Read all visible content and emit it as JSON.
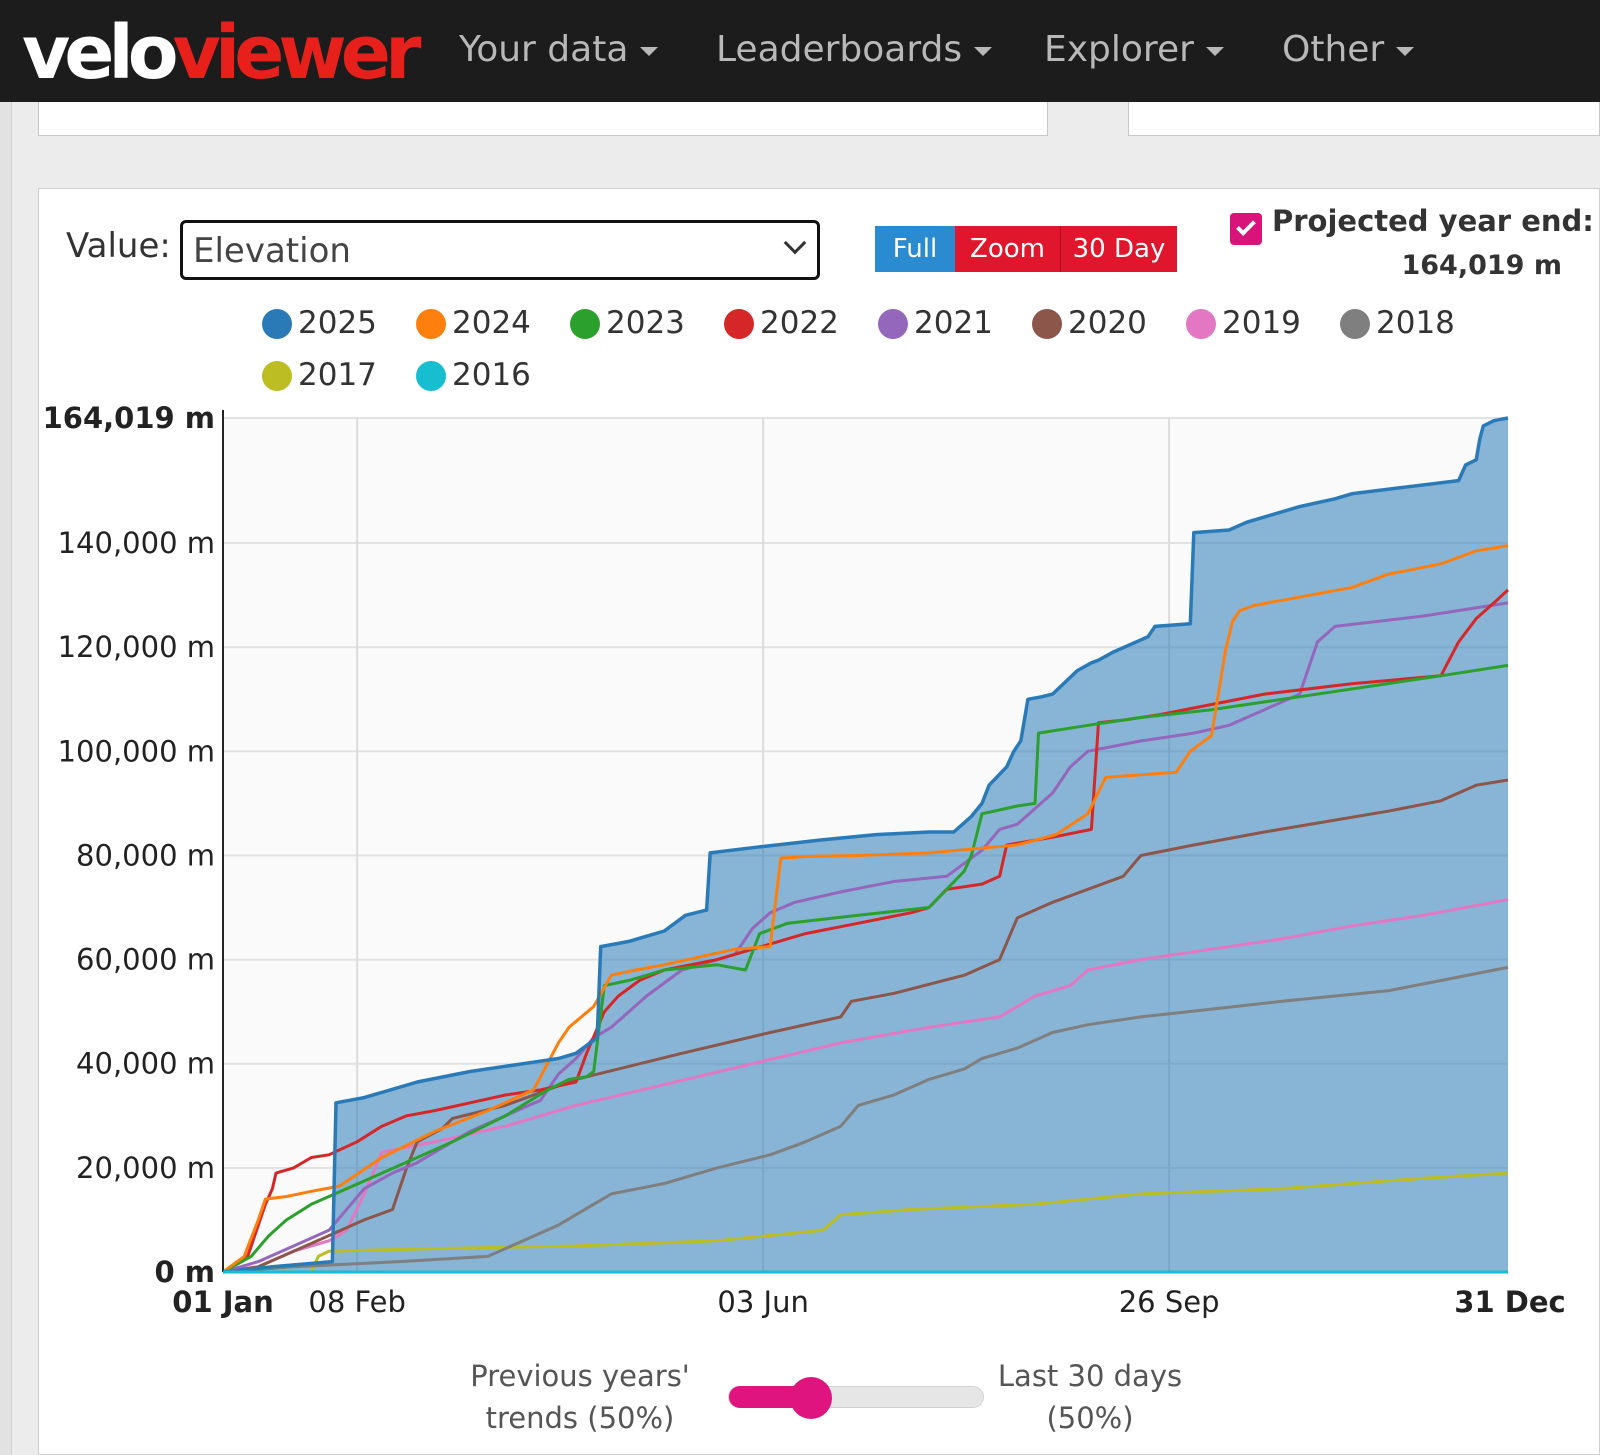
{
  "app": {
    "logo_part1": "velo",
    "logo_part2": "viewer",
    "nav": [
      "Your data",
      "Leaderboards",
      "Explorer",
      "Other"
    ]
  },
  "controls": {
    "value_label": "Value:",
    "value_selected": "Elevation",
    "buttons": [
      "Full",
      "Zoom",
      "30 Day"
    ],
    "projected_label": "Projected year end:",
    "projected_value": "164,019 m",
    "projected_checked": true
  },
  "slider": {
    "left_label_line1": "Previous years'",
    "left_label_line2": "trends (50%)",
    "right_label_line1": "Last 30 days",
    "right_label_line2": "(50%)",
    "value_fraction": 0.28
  },
  "chart_data": {
    "type": "line",
    "title": "",
    "xlabel": "",
    "ylabel": "",
    "x_ticks": [
      "01 Jan",
      "08 Feb",
      "03 Jun",
      "26 Sep",
      "31 Dec"
    ],
    "x_tick_days": [
      0,
      38,
      153,
      268,
      364
    ],
    "y_ticks": [
      "0 m",
      "20,000 m",
      "40,000 m",
      "60,000 m",
      "80,000 m",
      "100,000 m",
      "120,000 m",
      "140,000 m",
      "164,019 m"
    ],
    "y_tick_values": [
      0,
      20000,
      40000,
      60000,
      80000,
      100000,
      120000,
      140000,
      164019
    ],
    "xlim": [
      0,
      364
    ],
    "ylim": [
      0,
      164019
    ],
    "grid": true,
    "legend_position": "top",
    "series": [
      {
        "name": "2025",
        "color": "#2a7ab8",
        "fill": true,
        "x": [
          0,
          14,
          31,
          32,
          40,
          55,
          70,
          85,
          95,
          100,
          106,
          107,
          115,
          125,
          131,
          137,
          138,
          150,
          170,
          185,
          200,
          207,
          212,
          215,
          217,
          222,
          224,
          226,
          228,
          232,
          235,
          242,
          246,
          248,
          252,
          262,
          264,
          274,
          275,
          285,
          290,
          305,
          315,
          320,
          350,
          352,
          355,
          356,
          357,
          360,
          364
        ],
        "y": [
          0,
          1000,
          2000,
          32500,
          33500,
          36500,
          38500,
          40000,
          41000,
          42000,
          45000,
          62500,
          63500,
          65500,
          68500,
          69500,
          80500,
          81500,
          83000,
          84000,
          84500,
          84500,
          87500,
          90000,
          93500,
          97000,
          100000,
          102000,
          110000,
          110500,
          111000,
          115500,
          117000,
          117500,
          119000,
          122000,
          124000,
          124500,
          142000,
          142500,
          144000,
          147000,
          148500,
          149500,
          152000,
          155000,
          156000,
          160000,
          162500,
          163500,
          164019
        ]
      },
      {
        "name": "2024",
        "color": "#ff7f0e",
        "x": [
          0,
          6,
          10,
          12,
          18,
          25,
          33,
          45,
          60,
          75,
          88,
          95,
          98,
          105,
          110,
          117,
          125,
          145,
          155,
          158,
          165,
          180,
          200,
          225,
          236,
          245,
          250,
          270,
          274,
          280,
          284,
          286,
          288,
          292,
          300,
          320,
          330,
          345,
          355,
          364
        ],
        "y": [
          0,
          3000,
          10000,
          14000,
          14500,
          15500,
          16500,
          22000,
          27000,
          31000,
          35000,
          44000,
          47000,
          51000,
          57000,
          58000,
          59000,
          62000,
          62500,
          79500,
          79800,
          80000,
          80500,
          82000,
          84000,
          88000,
          95000,
          96000,
          100000,
          103000,
          119500,
          125000,
          127000,
          128000,
          129000,
          131500,
          134000,
          136000,
          138500,
          139500
        ]
      },
      {
        "name": "2023",
        "color": "#2ca02c",
        "x": [
          0,
          8,
          13,
          18,
          25,
          35,
          45,
          55,
          65,
          80,
          92,
          98,
          103,
          105,
          108,
          115,
          125,
          140,
          148,
          152,
          160,
          180,
          200,
          210,
          212,
          215,
          225,
          230,
          231,
          245,
          260,
          280,
          300,
          330,
          345,
          364
        ],
        "y": [
          0,
          3000,
          7000,
          10000,
          13000,
          16000,
          19000,
          22000,
          25000,
          30000,
          35000,
          37000,
          37500,
          38500,
          55000,
          56000,
          58000,
          59000,
          58000,
          65000,
          67000,
          68500,
          70000,
          77000,
          80000,
          88000,
          89500,
          90000,
          103500,
          105000,
          106500,
          108000,
          110000,
          113000,
          114500,
          116500
        ]
      },
      {
        "name": "2022",
        "color": "#d62728",
        "x": [
          0,
          7,
          10,
          12,
          14,
          15,
          20,
          25,
          30,
          38,
          45,
          52,
          60,
          70,
          80,
          90,
          100,
          103,
          108,
          112,
          118,
          125,
          140,
          150,
          165,
          180,
          195,
          200,
          205,
          215,
          220,
          222,
          235,
          246,
          248,
          255,
          265,
          280,
          295,
          320,
          345,
          350,
          355,
          360,
          364
        ],
        "y": [
          0,
          3000,
          9000,
          13000,
          16000,
          19000,
          20000,
          22000,
          22500,
          25000,
          28000,
          30000,
          31000,
          32500,
          34000,
          35000,
          36500,
          42000,
          50000,
          53000,
          56000,
          58000,
          60000,
          62000,
          65000,
          67000,
          69000,
          70000,
          73500,
          74500,
          76000,
          82000,
          83500,
          85000,
          105500,
          106000,
          107000,
          109000,
          111000,
          113000,
          114500,
          121000,
          125500,
          128500,
          131000
        ]
      },
      {
        "name": "2021",
        "color": "#9467bd",
        "x": [
          0,
          10,
          20,
          30,
          40,
          48,
          55,
          60,
          70,
          80,
          90,
          95,
          100,
          105,
          110,
          120,
          130,
          145,
          150,
          155,
          162,
          175,
          190,
          205,
          215,
          220,
          225,
          235,
          240,
          245,
          260,
          275,
          285,
          295,
          305,
          310,
          315,
          340,
          364
        ],
        "y": [
          0,
          2000,
          5000,
          8000,
          16000,
          19000,
          21000,
          23000,
          27000,
          30000,
          33000,
          38000,
          41000,
          45000,
          47000,
          53000,
          58000,
          61000,
          66000,
          69000,
          71000,
          73000,
          75000,
          76000,
          81000,
          85000,
          86000,
          92000,
          97000,
          100000,
          102000,
          103500,
          105000,
          108000,
          111000,
          121000,
          124000,
          126000,
          128500
        ]
      },
      {
        "name": "2020",
        "color": "#8c564b",
        "x": [
          0,
          10,
          20,
          30,
          40,
          48,
          52,
          55,
          62,
          65,
          80,
          100,
          130,
          155,
          175,
          178,
          190,
          210,
          220,
          225,
          235,
          255,
          260,
          275,
          295,
          330,
          345,
          355,
          364
        ],
        "y": [
          0,
          1000,
          4000,
          7000,
          10000,
          12000,
          20000,
          25000,
          27500,
          29500,
          32000,
          37000,
          42000,
          46000,
          49000,
          52000,
          53500,
          57000,
          60000,
          68000,
          71000,
          76000,
          80000,
          82000,
          84500,
          88500,
          90500,
          93500,
          94500
        ]
      },
      {
        "name": "2019",
        "color": "#e377c2",
        "x": [
          0,
          10,
          20,
          30,
          35,
          40,
          45,
          60,
          80,
          100,
          125,
          150,
          175,
          200,
          220,
          230,
          240,
          245,
          260,
          280,
          300,
          320,
          340,
          364
        ],
        "y": [
          0,
          1000,
          4000,
          6000,
          8000,
          15000,
          23000,
          25000,
          28000,
          32000,
          36000,
          40000,
          44000,
          47000,
          49000,
          53000,
          55000,
          58000,
          60000,
          62000,
          64000,
          66500,
          68500,
          71500
        ]
      },
      {
        "name": "2018",
        "color": "#7f7f7f",
        "x": [
          0,
          20,
          50,
          75,
          95,
          110,
          125,
          140,
          155,
          165,
          175,
          180,
          190,
          200,
          210,
          215,
          225,
          235,
          245,
          260,
          280,
          300,
          330,
          364
        ],
        "y": [
          0,
          1000,
          2000,
          3000,
          9000,
          15000,
          17000,
          20000,
          22500,
          25000,
          28000,
          32000,
          34000,
          37000,
          39000,
          41000,
          43000,
          46000,
          47500,
          49000,
          50500,
          52000,
          54000,
          58500
        ]
      },
      {
        "name": "2017",
        "color": "#bcbd22",
        "x": [
          0,
          25,
          27,
          30,
          60,
          100,
          140,
          170,
          175,
          195,
          230,
          260,
          300,
          340,
          364
        ],
        "y": [
          0,
          0,
          3000,
          4000,
          4500,
          5000,
          6000,
          8000,
          11000,
          12000,
          13000,
          15000,
          16000,
          18000,
          19000
        ]
      },
      {
        "name": "2016",
        "color": "#17becf",
        "x": [
          0,
          364
        ],
        "y": [
          0,
          0
        ]
      }
    ]
  }
}
